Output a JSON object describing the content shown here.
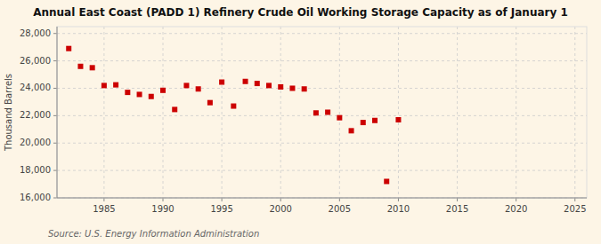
{
  "chart_data": {
    "type": "scatter",
    "title": "Annual East Coast (PADD 1) Refinery Crude Oil Working Storage Capacity as of January 1",
    "ylabel": "Thousand Barrels",
    "source": "Source: U.S. Energy Information Administration",
    "x": [
      1982,
      1983,
      1984,
      1985,
      1986,
      1987,
      1988,
      1989,
      1990,
      1991,
      1992,
      1993,
      1994,
      1995,
      1996,
      1997,
      1998,
      1999,
      2000,
      2001,
      2002,
      2003,
      2004,
      2005,
      2006,
      2007,
      2008,
      2009,
      2010
    ],
    "values": [
      26900,
      25600,
      25500,
      24200,
      24250,
      23700,
      23550,
      23400,
      23850,
      22450,
      24200,
      23950,
      22950,
      24450,
      22700,
      24500,
      24350,
      24200,
      24100,
      24000,
      23950,
      22200,
      22250,
      21850,
      20900,
      21500,
      21650,
      17200,
      21700
    ],
    "color": "#cc0000",
    "marker": "square",
    "xlim": [
      1981,
      2026
    ],
    "ylim": [
      16000,
      28500
    ],
    "xticks": [
      1985,
      1990,
      1995,
      2000,
      2005,
      2010,
      2015,
      2020,
      2025
    ],
    "yticks": [
      {
        "value": 16000,
        "label": "16,000"
      },
      {
        "value": 18000,
        "label": "18,000"
      },
      {
        "value": 20000,
        "label": "20,000"
      },
      {
        "value": 22000,
        "label": "22,000"
      },
      {
        "value": 24000,
        "label": "24,000"
      },
      {
        "value": 26000,
        "label": "26,000"
      },
      {
        "value": 28000,
        "label": "28,000"
      }
    ],
    "grid": true
  }
}
